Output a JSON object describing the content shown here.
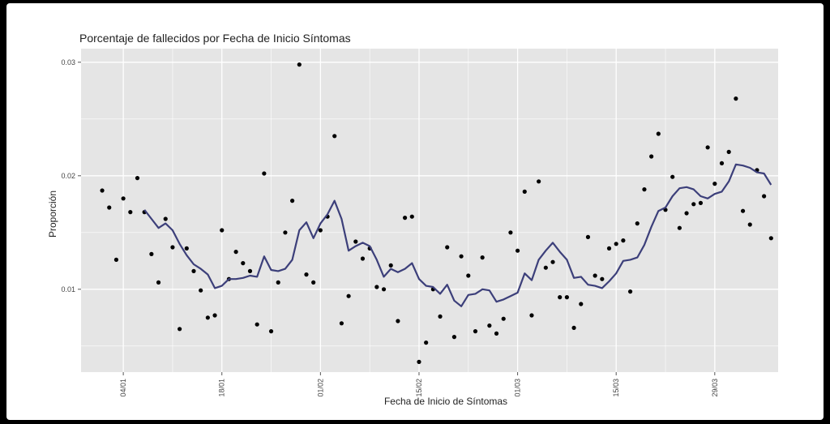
{
  "chart_data": {
    "type": "scatter",
    "title": "Porcentaje de fallecidos por Fecha de Inicio Síntomas",
    "xlabel": "Fecha de Inicio de Síntomas",
    "ylabel": "Proporción",
    "xlim": [
      -3,
      96
    ],
    "ylim": [
      0.0027,
      0.0312
    ],
    "x_ticks": [
      {
        "day": 3,
        "label": "04/01"
      },
      {
        "day": 17,
        "label": "18/01"
      },
      {
        "day": 31,
        "label": "01/02"
      },
      {
        "day": 45,
        "label": "15/02"
      },
      {
        "day": 59,
        "label": "01/03"
      },
      {
        "day": 73,
        "label": "15/03"
      },
      {
        "day": 87,
        "label": "29/03"
      }
    ],
    "y_ticks": [
      {
        "value": 0.01,
        "label": "0.01"
      },
      {
        "value": 0.02,
        "label": "0.02"
      },
      {
        "value": 0.03,
        "label": "0.03"
      }
    ],
    "grid": true,
    "colors": {
      "panel": "#e5e5e5",
      "grid": "#ffffff",
      "line": "#3c3f7a",
      "points": "#000000"
    },
    "points": [
      [
        0,
        0.0187
      ],
      [
        1,
        0.0172
      ],
      [
        2,
        0.0126
      ],
      [
        3,
        0.018
      ],
      [
        4,
        0.0168
      ],
      [
        5,
        0.0198
      ],
      [
        6,
        0.0168
      ],
      [
        7,
        0.0131
      ],
      [
        8,
        0.0106
      ],
      [
        9,
        0.0162
      ],
      [
        10,
        0.0137
      ],
      [
        11,
        0.0065
      ],
      [
        12,
        0.0136
      ],
      [
        13,
        0.0116
      ],
      [
        14,
        0.0099
      ],
      [
        15,
        0.0075
      ],
      [
        16,
        0.0077
      ],
      [
        17,
        0.0152
      ],
      [
        18,
        0.0109
      ],
      [
        19,
        0.0133
      ],
      [
        20,
        0.0123
      ],
      [
        21,
        0.0116
      ],
      [
        22,
        0.0069
      ],
      [
        23,
        0.0202
      ],
      [
        24,
        0.0063
      ],
      [
        25,
        0.0106
      ],
      [
        26,
        0.015
      ],
      [
        27,
        0.0178
      ],
      [
        28,
        0.0298
      ],
      [
        29,
        0.0113
      ],
      [
        30,
        0.0106
      ],
      [
        31,
        0.0152
      ],
      [
        32,
        0.0164
      ],
      [
        33,
        0.0235
      ],
      [
        34,
        0.007
      ],
      [
        35,
        0.0094
      ],
      [
        36,
        0.0142
      ],
      [
        37,
        0.0127
      ],
      [
        38,
        0.0136
      ],
      [
        39,
        0.0102
      ],
      [
        40,
        0.01
      ],
      [
        41,
        0.0121
      ],
      [
        42,
        0.0072
      ],
      [
        43,
        0.0163
      ],
      [
        44,
        0.0164
      ],
      [
        45,
        0.0036
      ],
      [
        46,
        0.0053
      ],
      [
        47,
        0.01
      ],
      [
        48,
        0.0076
      ],
      [
        49,
        0.0137
      ],
      [
        50,
        0.0058
      ],
      [
        51,
        0.0129
      ],
      [
        52,
        0.0112
      ],
      [
        53,
        0.0063
      ],
      [
        54,
        0.0128
      ],
      [
        55,
        0.0068
      ],
      [
        56,
        0.0061
      ],
      [
        57,
        0.0074
      ],
      [
        58,
        0.015
      ],
      [
        59,
        0.0134
      ],
      [
        60,
        0.0186
      ],
      [
        61,
        0.0077
      ],
      [
        62,
        0.0195
      ],
      [
        63,
        0.0119
      ],
      [
        64,
        0.0124
      ],
      [
        65,
        0.0093
      ],
      [
        66,
        0.0093
      ],
      [
        67,
        0.0066
      ],
      [
        68,
        0.0087
      ],
      [
        69,
        0.0146
      ],
      [
        70,
        0.0112
      ],
      [
        71,
        0.0109
      ],
      [
        72,
        0.0136
      ],
      [
        73,
        0.014
      ],
      [
        74,
        0.0143
      ],
      [
        75,
        0.0098
      ],
      [
        76,
        0.0158
      ],
      [
        77,
        0.0188
      ],
      [
        78,
        0.0217
      ],
      [
        79,
        0.0237
      ],
      [
        80,
        0.017
      ],
      [
        81,
        0.0199
      ],
      [
        82,
        0.0154
      ],
      [
        83,
        0.0167
      ],
      [
        84,
        0.0175
      ],
      [
        85,
        0.0176
      ],
      [
        86,
        0.0225
      ],
      [
        87,
        0.0193
      ],
      [
        88,
        0.0211
      ],
      [
        89,
        0.0221
      ],
      [
        90,
        0.0268
      ],
      [
        91,
        0.0169
      ],
      [
        92,
        0.0157
      ],
      [
        93,
        0.0205
      ],
      [
        94,
        0.0182
      ],
      [
        95,
        0.0145
      ]
    ],
    "trend": [
      [
        6,
        0.017
      ],
      [
        7,
        0.0162
      ],
      [
        8,
        0.0154
      ],
      [
        9,
        0.0158
      ],
      [
        10,
        0.0152
      ],
      [
        11,
        0.014
      ],
      [
        12,
        0.013
      ],
      [
        13,
        0.0122
      ],
      [
        14,
        0.0118
      ],
      [
        15,
        0.0113
      ],
      [
        16,
        0.0101
      ],
      [
        17,
        0.0103
      ],
      [
        18,
        0.0109
      ],
      [
        19,
        0.0109
      ],
      [
        20,
        0.011
      ],
      [
        21,
        0.0112
      ],
      [
        22,
        0.0111
      ],
      [
        23,
        0.0129
      ],
      [
        24,
        0.0117
      ],
      [
        25,
        0.0116
      ],
      [
        26,
        0.0118
      ],
      [
        27,
        0.0126
      ],
      [
        28,
        0.0152
      ],
      [
        29,
        0.0159
      ],
      [
        30,
        0.0145
      ],
      [
        31,
        0.0158
      ],
      [
        32,
        0.0166
      ],
      [
        33,
        0.0178
      ],
      [
        34,
        0.0162
      ],
      [
        35,
        0.0134
      ],
      [
        36,
        0.0138
      ],
      [
        37,
        0.0141
      ],
      [
        38,
        0.0138
      ],
      [
        39,
        0.0126
      ],
      [
        40,
        0.0111
      ],
      [
        41,
        0.0118
      ],
      [
        42,
        0.0115
      ],
      [
        43,
        0.0118
      ],
      [
        44,
        0.0123
      ],
      [
        45,
        0.0109
      ],
      [
        46,
        0.0103
      ],
      [
        47,
        0.0102
      ],
      [
        48,
        0.0096
      ],
      [
        49,
        0.0104
      ],
      [
        50,
        0.009
      ],
      [
        51,
        0.0085
      ],
      [
        52,
        0.0095
      ],
      [
        53,
        0.0096
      ],
      [
        54,
        0.01
      ],
      [
        55,
        0.0099
      ],
      [
        56,
        0.0089
      ],
      [
        57,
        0.0091
      ],
      [
        58,
        0.0094
      ],
      [
        59,
        0.0097
      ],
      [
        60,
        0.0114
      ],
      [
        61,
        0.0108
      ],
      [
        62,
        0.0126
      ],
      [
        63,
        0.0134
      ],
      [
        64,
        0.0141
      ],
      [
        65,
        0.0133
      ],
      [
        66,
        0.0126
      ],
      [
        67,
        0.011
      ],
      [
        68,
        0.0111
      ],
      [
        69,
        0.0104
      ],
      [
        70,
        0.0103
      ],
      [
        71,
        0.0101
      ],
      [
        72,
        0.0107
      ],
      [
        73,
        0.0114
      ],
      [
        74,
        0.0125
      ],
      [
        75,
        0.0126
      ],
      [
        76,
        0.0128
      ],
      [
        77,
        0.0139
      ],
      [
        78,
        0.0155
      ],
      [
        79,
        0.0169
      ],
      [
        80,
        0.0172
      ],
      [
        81,
        0.0182
      ],
      [
        82,
        0.0189
      ],
      [
        83,
        0.019
      ],
      [
        84,
        0.0188
      ],
      [
        85,
        0.0182
      ],
      [
        86,
        0.018
      ],
      [
        87,
        0.0184
      ],
      [
        88,
        0.0186
      ],
      [
        89,
        0.0195
      ],
      [
        90,
        0.021
      ],
      [
        91,
        0.0209
      ],
      [
        92,
        0.0207
      ],
      [
        93,
        0.0203
      ],
      [
        94,
        0.0202
      ],
      [
        95,
        0.0192
      ]
    ]
  }
}
